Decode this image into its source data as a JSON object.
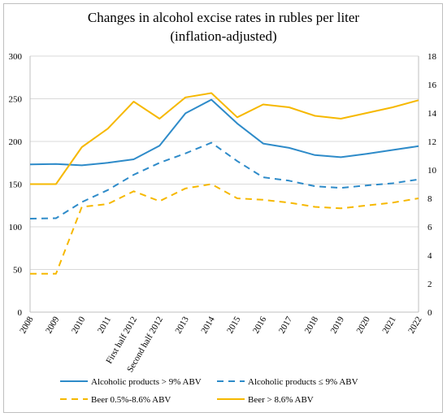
{
  "chart_data": {
    "type": "line",
    "title_line1": "Changes in alcohol excise rates in rubles per liter",
    "title_line2": "(inflation-adjusted)",
    "categories": [
      "2008",
      "2009",
      "2010",
      "2011",
      "First half 2012",
      "Second half 2012",
      "2013",
      "2014",
      "2015",
      "2016",
      "2017",
      "2018",
      "2019",
      "2020",
      "2021",
      "2022"
    ],
    "left_axis": {
      "min": 0,
      "max": 300,
      "ticks": [
        "0",
        "50",
        "100",
        "150",
        "200",
        "250",
        "300"
      ]
    },
    "right_axis": {
      "min": 0,
      "max": 18,
      "ticks": [
        "0",
        "2",
        "4",
        "6",
        "8",
        "10",
        "12",
        "14",
        "16",
        "18"
      ]
    },
    "grid": "horizontal",
    "legend_position": "bottom",
    "series": [
      {
        "name": "Alcoholic products > 9% ABV",
        "axis": "left",
        "color": "#2e8bc9",
        "dash": "solid",
        "values": [
          173,
          173.5,
          172,
          175,
          179,
          195,
          233,
          249,
          221,
          197.5,
          192.5,
          184,
          181.5,
          185.5,
          190,
          194.5
        ]
      },
      {
        "name": "Alcoholic products ≤ 9% ABV",
        "axis": "left",
        "color": "#2e8bc9",
        "dash": "dashed",
        "values": [
          109.5,
          110,
          129,
          143,
          161,
          175,
          186,
          198.5,
          177,
          158,
          154,
          147.5,
          145.5,
          148.5,
          151,
          155.5
        ]
      },
      {
        "name": "Beer 0.5%-8.6% ABV",
        "axis": "right",
        "color": "#f6b800",
        "dash": "dashed",
        "values": [
          2.7,
          2.7,
          7.4,
          7.6,
          8.5,
          7.8,
          8.7,
          9,
          8,
          7.9,
          7.7,
          7.4,
          7.3,
          7.5,
          7.7,
          8
        ]
      },
      {
        "name": "Beer > 8.6% ABV",
        "axis": "right",
        "color": "#f6b800",
        "dash": "solid",
        "values": [
          9,
          9,
          11.6,
          12.9,
          14.8,
          13.6,
          15.1,
          15.4,
          13.7,
          14.6,
          14.4,
          13.8,
          13.6,
          14,
          14.4,
          14.9
        ]
      }
    ]
  }
}
